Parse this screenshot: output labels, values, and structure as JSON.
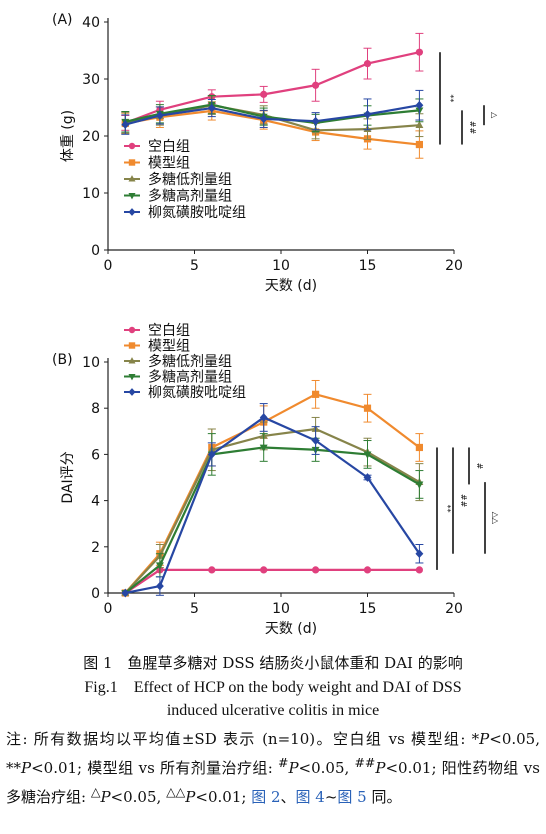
{
  "chart_data": [
    {
      "type": "line",
      "panel_label": "(A)",
      "xlabel": "天数 (d)",
      "ylabel": "体重 (g)",
      "xlim": [
        0,
        20
      ],
      "ylim": [
        0,
        40
      ],
      "xticks": [
        0,
        5,
        10,
        15,
        20
      ],
      "yticks": [
        0,
        10,
        20,
        30,
        40
      ],
      "x": [
        1,
        3,
        6,
        9,
        12,
        15,
        18
      ],
      "legend_position": "bottom-left",
      "series": [
        {
          "name": "空白组",
          "color": "#e0407e",
          "marker": "circle",
          "values": [
            22.3,
            24.6,
            26.9,
            27.3,
            28.9,
            32.7,
            34.7
          ],
          "err": [
            1.3,
            1.5,
            1.2,
            1.4,
            2.8,
            2.7,
            3.3
          ]
        },
        {
          "name": "模型组",
          "color": "#f08a2e",
          "marker": "square",
          "values": [
            22.2,
            23.3,
            24.4,
            22.8,
            20.7,
            19.5,
            18.5
          ],
          "err": [
            1.8,
            1.8,
            1.6,
            1.6,
            1.5,
            1.8,
            2.4
          ]
        },
        {
          "name": "多糖低剂量组",
          "color": "#86844a",
          "marker": "triangle-up",
          "values": [
            22.3,
            23.5,
            25.4,
            23.7,
            21.0,
            21.2,
            21.9
          ],
          "err": [
            1.8,
            1.6,
            1.6,
            1.6,
            1.5,
            1.8,
            2.0
          ]
        },
        {
          "name": "多糖高剂量组",
          "color": "#2e7d34",
          "marker": "triangle-down",
          "values": [
            22.5,
            23.9,
            25.5,
            23.4,
            22.3,
            23.6,
            24.5
          ],
          "err": [
            1.8,
            1.6,
            1.6,
            1.5,
            1.5,
            1.7,
            2.0
          ]
        },
        {
          "name": "柳氮磺胺吡啶组",
          "color": "#2747a3",
          "marker": "diamond",
          "values": [
            22.0,
            23.6,
            24.9,
            23.0,
            22.6,
            23.8,
            25.4
          ],
          "err": [
            1.7,
            1.5,
            1.5,
            1.5,
            1.5,
            2.7,
            2.6
          ]
        }
      ],
      "significance": [
        {
          "label": "**",
          "from": 34.7,
          "to": 18.5
        },
        {
          "label": "##",
          "from": 24.5,
          "to": 18.5
        },
        {
          "label": "△",
          "from": 25.4,
          "to": 21.9
        }
      ]
    },
    {
      "type": "line",
      "panel_label": "(B)",
      "xlabel": "天数 (d)",
      "ylabel": "DAI评分",
      "xlim": [
        0,
        20
      ],
      "ylim": [
        0,
        10
      ],
      "xticks": [
        0,
        5,
        10,
        15,
        20
      ],
      "yticks": [
        0,
        2,
        4,
        6,
        8,
        10
      ],
      "x": [
        1,
        3,
        6,
        9,
        12,
        15,
        18
      ],
      "legend_position": "top-left",
      "series": [
        {
          "name": "空白组",
          "color": "#e0407e",
          "marker": "circle",
          "values": [
            0,
            1,
            1,
            1,
            1,
            1,
            1
          ],
          "err": [
            0,
            0,
            0,
            0,
            0,
            0,
            0
          ]
        },
        {
          "name": "模型组",
          "color": "#f08a2e",
          "marker": "square",
          "values": [
            0,
            1.7,
            6.3,
            7.4,
            8.6,
            8.0,
            6.3
          ],
          "err": [
            0,
            0.5,
            0.8,
            0.7,
            0.6,
            0.6,
            0.6
          ]
        },
        {
          "name": "多糖低剂量组",
          "color": "#86844a",
          "marker": "triangle-up",
          "values": [
            0,
            1.6,
            6.2,
            6.8,
            7.1,
            6.1,
            4.8
          ],
          "err": [
            0,
            0.5,
            0.9,
            0.6,
            0.5,
            0.6,
            0.8
          ]
        },
        {
          "name": "多糖高剂量组",
          "color": "#2e7d34",
          "marker": "triangle-down",
          "values": [
            0,
            1.2,
            6.0,
            6.3,
            6.2,
            6.0,
            4.7
          ],
          "err": [
            0,
            0.5,
            0.9,
            0.6,
            0.5,
            0.6,
            0.6
          ]
        },
        {
          "name": "柳氮磺胺吡啶组",
          "color": "#2747a3",
          "marker": "diamond",
          "values": [
            0,
            0.3,
            6.0,
            7.6,
            6.6,
            5.0,
            1.7
          ],
          "err": [
            0,
            0.4,
            0.5,
            0.6,
            0.6,
            0.1,
            0.4
          ]
        }
      ],
      "significance": [
        {
          "label": "**",
          "from": 6.3,
          "to": 1.0
        },
        {
          "label": "##",
          "from": 6.3,
          "to": 1.7
        },
        {
          "label": "#",
          "from": 6.3,
          "to": 4.7
        },
        {
          "label": "△△",
          "from": 4.8,
          "to": 1.7
        }
      ]
    }
  ],
  "caption": {
    "zh": "图 1　鱼腥草多糖对 DSS 结肠炎小鼠体重和 DAI 的影响",
    "en_line1": "Fig.1　Effect of HCP on the body weight and DAI of DSS",
    "en_line2": "induced ulcerative colitis in mice"
  },
  "note": {
    "t1": "注: 所有数据均以平均值±SD 表示 (n=10)。空白组 vs 模型组: *",
    "p": "P",
    "t2": "<0.05, **",
    "t3": "<0.01; 模型组 vs 所有剂量治疗组: ",
    "sup1": "#",
    "t4": "<0.05, ",
    "sup2": "##",
    "t5": "<0.01; 阳性药物组 vs 多糖治疗组: ",
    "sup3": "△",
    "t6": "<0.05, ",
    "sup4": "△△",
    "t7": "<0.01; ",
    "ref1": "图 2",
    "t8": "、",
    "ref2": "图 4",
    "t9": "~",
    "ref3": "图 5",
    "t10": " 同。"
  }
}
